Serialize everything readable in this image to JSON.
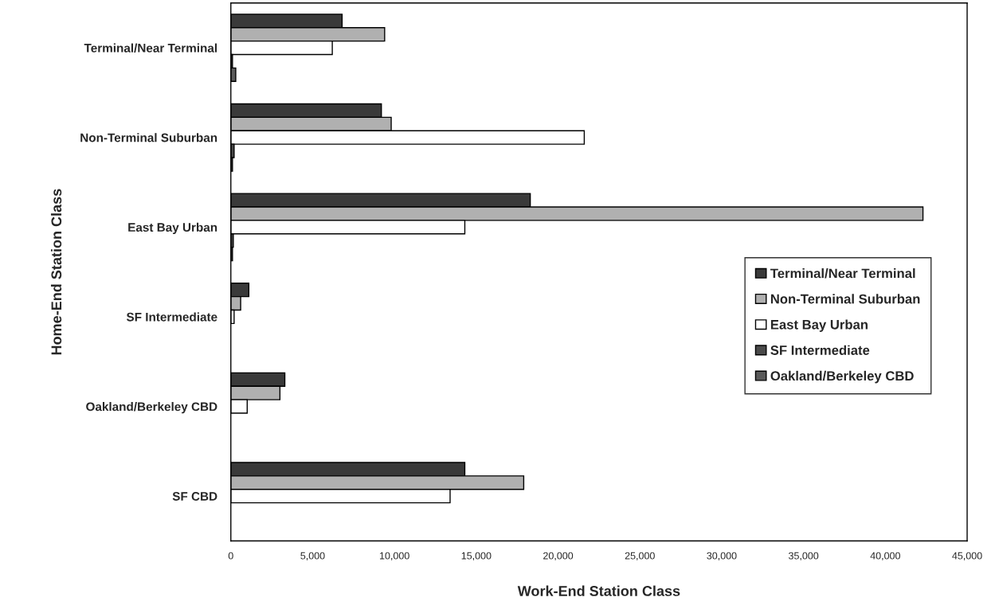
{
  "chart_data": {
    "type": "bar",
    "orientation": "horizontal",
    "xlabel": "Work-End Station Class",
    "ylabel": "Home-End Station Class",
    "categories": [
      "Terminal/Near Terminal",
      "Non-Terminal Suburban",
      "East Bay Urban",
      "SF Intermediate",
      "Oakland/Berkeley CBD",
      "SF CBD"
    ],
    "series": [
      {
        "name": "Terminal/Near Terminal",
        "color": "#3a3a3a",
        "values": [
          6800,
          9200,
          18300,
          1100,
          3300,
          14300
        ]
      },
      {
        "name": "Non-Terminal Suburban",
        "color": "#b0b0b0",
        "values": [
          9400,
          9800,
          42300,
          600,
          3000,
          17900
        ]
      },
      {
        "name": "East Bay Urban",
        "color": "#ffffff",
        "values": [
          6200,
          21600,
          14300,
          200,
          1000,
          13400
        ]
      },
      {
        "name": "SF Intermediate",
        "color": "#4a4a4a",
        "values": [
          100,
          200,
          150,
          0,
          0,
          0
        ]
      },
      {
        "name": "Oakland/Berkeley CBD",
        "color": "#5a5a5a",
        "values": [
          300,
          100,
          100,
          0,
          0,
          0
        ]
      }
    ],
    "xlim": [
      0,
      45000
    ],
    "xticks": [
      {
        "value": 0,
        "label": "0"
      },
      {
        "value": 5000,
        "label": "5,000"
      },
      {
        "value": 10000,
        "label": "10,000"
      },
      {
        "value": 15000,
        "label": "15,000"
      },
      {
        "value": 20000,
        "label": "20,000"
      },
      {
        "value": 25000,
        "label": "25,000"
      },
      {
        "value": 30000,
        "label": "30,000"
      },
      {
        "value": 35000,
        "label": "35,000"
      },
      {
        "value": 40000,
        "label": "40,000"
      },
      {
        "value": 45000,
        "label": "45,000"
      }
    ],
    "grid": false,
    "legend": "right"
  }
}
